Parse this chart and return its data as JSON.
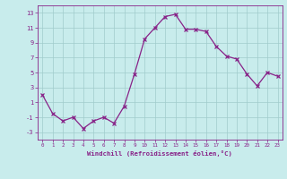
{
  "x": [
    0,
    1,
    2,
    3,
    4,
    5,
    6,
    7,
    8,
    9,
    10,
    11,
    12,
    13,
    14,
    15,
    16,
    17,
    18,
    19,
    20,
    21,
    22,
    23
  ],
  "y": [
    2.0,
    -0.5,
    -1.5,
    -1.0,
    -2.5,
    -1.5,
    -1.0,
    -1.8,
    0.5,
    4.8,
    9.5,
    11.0,
    12.5,
    12.8,
    10.8,
    10.8,
    10.5,
    8.5,
    7.2,
    6.8,
    4.8,
    3.2,
    5.0,
    4.5
  ],
  "line_color": "#882288",
  "marker_color": "#882288",
  "bg_color": "#c8ecec",
  "grid_color": "#a0cccc",
  "xlabel": "Windchill (Refroidissement éolien,°C)",
  "xlabel_color": "#882288",
  "tick_color": "#882288",
  "xlim": [
    -0.5,
    23.5
  ],
  "ylim": [
    -4,
    14
  ],
  "yticks": [
    -3,
    -1,
    1,
    3,
    5,
    7,
    9,
    11,
    13
  ],
  "xticks": [
    0,
    1,
    2,
    3,
    4,
    5,
    6,
    7,
    8,
    9,
    10,
    11,
    12,
    13,
    14,
    15,
    16,
    17,
    18,
    19,
    20,
    21,
    22,
    23
  ]
}
